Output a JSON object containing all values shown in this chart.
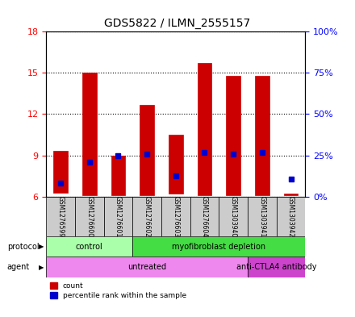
{
  "title": "GDS5822 / ILMN_2555157",
  "samples": [
    "GSM1276599",
    "GSM1276600",
    "GSM1276601",
    "GSM1276602",
    "GSM1276603",
    "GSM1276604",
    "GSM1303940",
    "GSM1303941",
    "GSM1303942"
  ],
  "bar_bottoms": [
    6.3,
    6.1,
    6.1,
    6.1,
    6.2,
    6.1,
    6.1,
    6.1,
    6.1
  ],
  "bar_tops": [
    9.3,
    15.0,
    9.0,
    12.7,
    10.5,
    15.7,
    14.8,
    14.8,
    6.2
  ],
  "percentile_values": [
    7.0,
    8.5,
    9.0,
    9.1,
    7.5,
    9.2,
    9.1,
    9.2,
    7.3
  ],
  "bar_color": "#cc0000",
  "percentile_color": "#0000cc",
  "ylim_left": [
    6,
    18
  ],
  "ylim_right": [
    0,
    100
  ],
  "yticks_left": [
    6,
    9,
    12,
    15,
    18
  ],
  "yticks_right": [
    0,
    25,
    50,
    75,
    100
  ],
  "ytick_labels_right": [
    "0%",
    "25%",
    "50%",
    "75%",
    "100%"
  ],
  "proto_groups": [
    {
      "label": "control",
      "start": 0,
      "end": 2,
      "color": "#aaffaa"
    },
    {
      "label": "myofibroblast depletion",
      "start": 3,
      "end": 8,
      "color": "#44dd44"
    }
  ],
  "agent_groups": [
    {
      "label": "untreated",
      "start": 0,
      "end": 6,
      "color": "#ee88ee"
    },
    {
      "label": "anti-CTLA4 antibody",
      "start": 7,
      "end": 8,
      "color": "#cc44cc"
    }
  ],
  "legend_count_color": "#cc0000",
  "legend_percentile_color": "#0000cc"
}
